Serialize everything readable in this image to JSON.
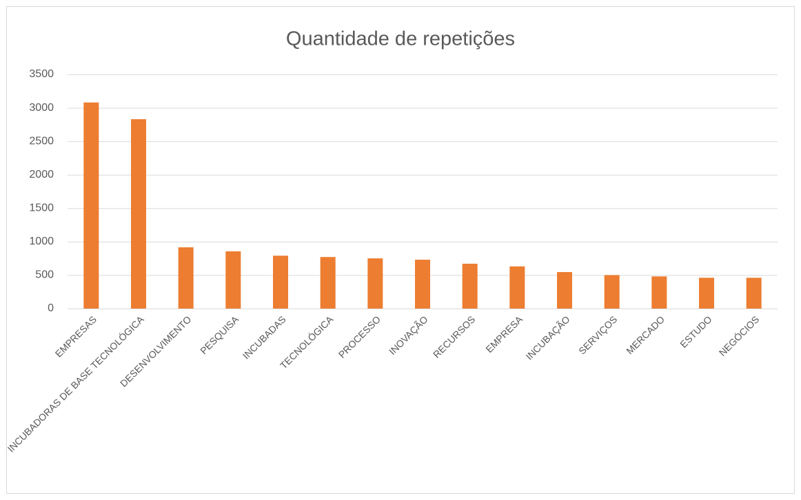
{
  "chart_data": {
    "type": "bar",
    "title": "Quantidade de repetições",
    "categories": [
      "EMPRESAS",
      "INCUBADORAS DE BASE TECNOLÓGICA",
      "DESENVOLVIMENTO",
      "PESQUISA",
      "INCUBADAS",
      "TECNOLÓGICA",
      "PROCESSO",
      "INOVAÇÃO",
      "RECURSOS",
      "EMPRESA",
      "INCUBAÇÃO",
      "SERVIÇOS",
      "MERCADO",
      "ESTUDO",
      "NEGÓCIOS"
    ],
    "values": [
      3080,
      2830,
      915,
      855,
      790,
      770,
      750,
      730,
      670,
      630,
      545,
      500,
      480,
      460,
      460
    ],
    "color": "#ed7d31",
    "ylim": [
      0,
      3500
    ],
    "yticks": [
      0,
      500,
      1000,
      1500,
      2000,
      2500,
      3000,
      3500
    ],
    "grid": true
  }
}
